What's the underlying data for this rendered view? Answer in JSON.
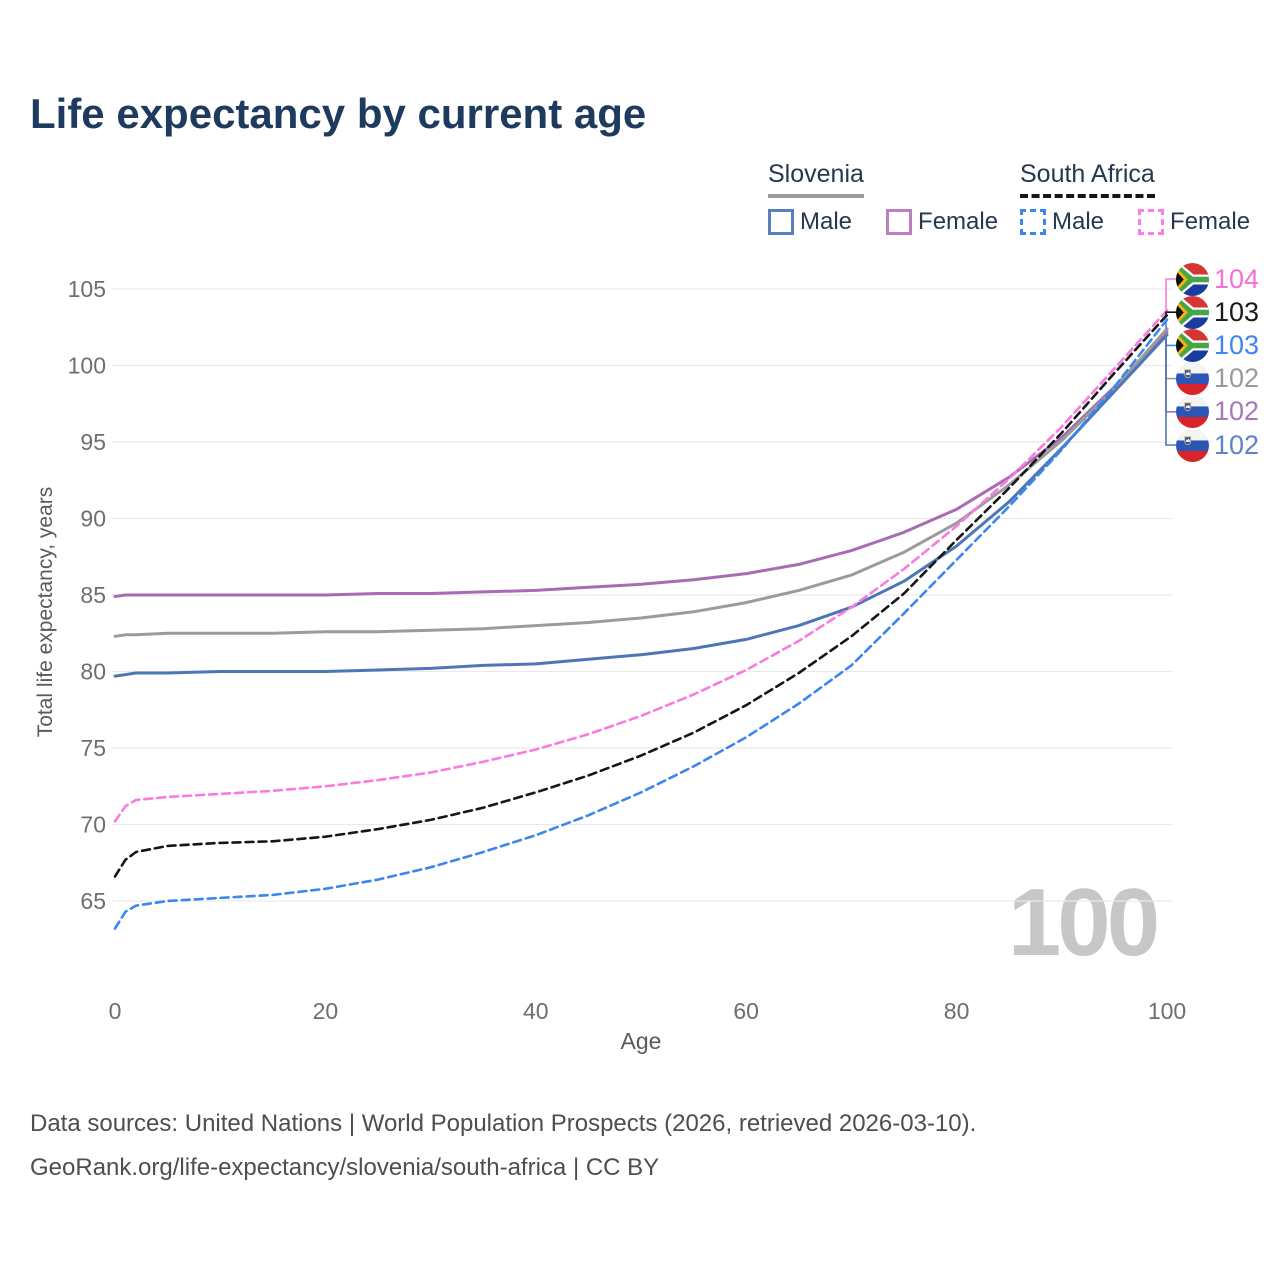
{
  "title": "Life expectancy by current age",
  "watermark": "100",
  "legend": {
    "groups": [
      {
        "label": "Slovenia",
        "line_style": "solid",
        "line_color": "#9b9b9b",
        "items": [
          {
            "label": "Male",
            "color": "#5a7fbe",
            "style": "solid"
          },
          {
            "label": "Female",
            "color": "#bd7ec0",
            "style": "solid"
          }
        ]
      },
      {
        "label": "South Africa",
        "line_style": "dashed",
        "line_color": "#161616",
        "items": [
          {
            "label": "Male",
            "color": "#3c86f0",
            "style": "dashed"
          },
          {
            "label": "Female",
            "color": "#fb7ce5",
            "style": "dashed"
          }
        ]
      }
    ]
  },
  "chart_data": {
    "type": "line",
    "title": "Life expectancy by current age",
    "xlabel": "Age",
    "ylabel": "Total life expectancy, years",
    "xlim": [
      0,
      100
    ],
    "ylim": [
      65,
      105
    ],
    "x_ticks": [
      0,
      20,
      40,
      60,
      80,
      100
    ],
    "y_ticks": [
      65,
      70,
      75,
      80,
      85,
      90,
      95,
      100,
      105
    ],
    "grid": "horizontal",
    "legend_position": "top-right",
    "x": [
      0,
      1,
      2,
      5,
      10,
      15,
      20,
      25,
      30,
      35,
      40,
      45,
      50,
      55,
      60,
      65,
      70,
      75,
      80,
      85,
      90,
      95,
      100
    ],
    "series": [
      {
        "name": "Slovenia Female",
        "country": "Slovenia",
        "sex": "Female",
        "color": "#a96bb3",
        "dashed": false,
        "values": [
          84.9,
          85.0,
          85.0,
          85.0,
          85.0,
          85.0,
          85.0,
          85.1,
          85.1,
          85.2,
          85.3,
          85.5,
          85.7,
          86.0,
          86.4,
          87.0,
          87.9,
          89.1,
          90.6,
          92.7,
          95.3,
          98.6,
          102.2
        ]
      },
      {
        "name": "Slovenia Both sexes",
        "country": "Slovenia",
        "sex": "Both",
        "color": "#9b9b9b",
        "dashed": false,
        "values": [
          82.3,
          82.4,
          82.4,
          82.5,
          82.5,
          82.5,
          82.6,
          82.6,
          82.7,
          82.8,
          83.0,
          83.2,
          83.5,
          83.9,
          84.5,
          85.3,
          86.3,
          87.8,
          89.7,
          92.2,
          95.1,
          98.5,
          102.4
        ]
      },
      {
        "name": "Slovenia Male",
        "country": "Slovenia",
        "sex": "Male",
        "color": "#4d76b6",
        "dashed": false,
        "values": [
          79.7,
          79.8,
          79.9,
          79.9,
          80.0,
          80.0,
          80.0,
          80.1,
          80.2,
          80.4,
          80.5,
          80.8,
          81.1,
          81.5,
          82.1,
          83.0,
          84.2,
          85.9,
          88.2,
          91.1,
          94.6,
          98.3,
          102.0
        ]
      },
      {
        "name": "South Africa Female",
        "country": "South Africa",
        "sex": "Female",
        "color": "#f97ae0",
        "dashed": true,
        "values": [
          70.2,
          71.2,
          71.6,
          71.8,
          72.0,
          72.2,
          72.5,
          72.9,
          73.4,
          74.1,
          74.9,
          75.9,
          77.1,
          78.5,
          80.1,
          82.0,
          84.2,
          86.7,
          89.5,
          92.6,
          96.0,
          99.8,
          103.6
        ]
      },
      {
        "name": "South Africa Both sexes",
        "country": "South Africa",
        "sex": "Both",
        "color": "#161616",
        "dashed": true,
        "values": [
          66.6,
          67.7,
          68.2,
          68.6,
          68.8,
          68.9,
          69.2,
          69.7,
          70.3,
          71.1,
          72.1,
          73.2,
          74.5,
          76.0,
          77.8,
          79.9,
          82.3,
          85.1,
          88.6,
          92.0,
          95.6,
          99.5,
          103.3
        ]
      },
      {
        "name": "South Africa Male",
        "country": "South Africa",
        "sex": "Male",
        "color": "#3c86f0",
        "dashed": true,
        "values": [
          63.2,
          64.3,
          64.7,
          65.0,
          65.2,
          65.4,
          65.8,
          66.4,
          67.2,
          68.2,
          69.3,
          70.6,
          72.1,
          73.8,
          75.7,
          77.9,
          80.4,
          83.8,
          87.3,
          90.8,
          94.5,
          98.6,
          103.0
        ]
      }
    ],
    "end_labels": [
      {
        "text": "104",
        "color": "#f66fd8",
        "flag": "za",
        "series": 3
      },
      {
        "text": "103",
        "color": "#1a1a1a",
        "flag": "za",
        "series": 4
      },
      {
        "text": "103",
        "color": "#3f86f0",
        "flag": "za",
        "series": 5
      },
      {
        "text": "102",
        "color": "#9a9a9a",
        "flag": "si",
        "series": 1
      },
      {
        "text": "102",
        "color": "#a877b8",
        "flag": "si",
        "series": 0
      },
      {
        "text": "102",
        "color": "#5b84c8",
        "flag": "si",
        "series": 2
      }
    ]
  },
  "footer": {
    "line1": "Data sources: United Nations | World Population Prospects (2026, retrieved 2026-03-10).",
    "line2": "GeoRank.org/life-expectancy/slovenia/south-africa | CC BY"
  }
}
